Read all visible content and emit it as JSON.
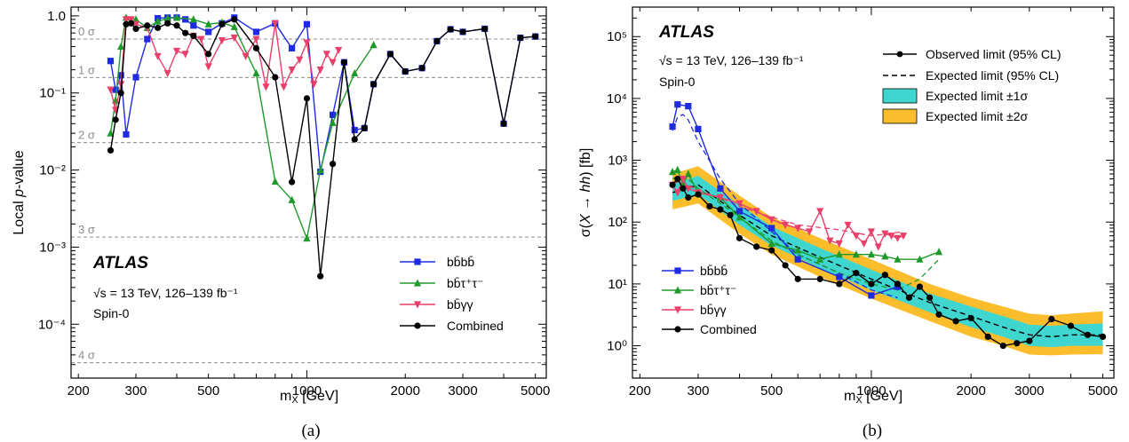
{
  "colors": {
    "bbbb": "#1f2be0",
    "bbtautau": "#1f9a2a",
    "bbyy": "#e8406a",
    "combined": "#000000",
    "band1": "#3ed6cf",
    "band2": "#fbbd2c",
    "sigma_line": "#8c8c8c"
  },
  "panel_a": {
    "label": "(a)",
    "atlas": "ATLAS",
    "energy": "√s = 13 TeV, 126–139 fb⁻¹",
    "spin": "Spin-0",
    "xlabel": "m_X [GeV]",
    "ylabel": "Local p-value",
    "x_ticks": [
      "200",
      "300",
      "500",
      "1000",
      "2000",
      "3000",
      "5000"
    ],
    "y_ticks": [
      "10⁻⁴",
      "10⁻³",
      "10⁻²",
      "10⁻¹",
      "1.0"
    ],
    "sigma_labels": [
      "0 σ",
      "1 σ",
      "2 σ",
      "3 σ",
      "4 σ"
    ],
    "legend": [
      "bb̄bb̄",
      "bb̄τ⁺τ⁻",
      "bb̄γγ",
      "Combined"
    ]
  },
  "panel_b": {
    "label": "(b)",
    "atlas": "ATLAS",
    "energy": "√s = 13 TeV, 126–139 fb⁻¹",
    "spin": "Spin-0",
    "xlabel": "m_X [GeV]",
    "ylabel": "σ(X → hh) [fb]",
    "x_ticks": [
      "200",
      "300",
      "500",
      "1000",
      "2000",
      "3000",
      "5000"
    ],
    "y_ticks": [
      "10⁰",
      "10¹",
      "10²",
      "10³",
      "10⁴",
      "10⁵"
    ],
    "legend_top": [
      "Observed limit (95% CL)",
      "Expected limit (95% CL)",
      "Expected limit ±1σ",
      "Expected limit ±2σ"
    ],
    "legend_channels": [
      "bb̄bb̄",
      "bb̄τ⁺τ⁻",
      "bb̄γγ",
      "Combined"
    ]
  },
  "chart_data": [
    {
      "type": "line",
      "panel": "a",
      "xlabel": "m_X [GeV]",
      "ylabel": "Local p-value",
      "x_scale": "log",
      "y_scale": "log",
      "xlim": [
        190,
        5400
      ],
      "ylim": [
        2e-05,
        1.3
      ],
      "sigma_lines": [
        0.5,
        0.1587,
        0.02275,
        0.00135,
        3.17e-05
      ],
      "legend_placement": "bottom-right",
      "series": [
        {
          "name": "bb̄bb̄",
          "marker": "square",
          "color": "#1f2be0",
          "x": [
            251,
            260,
            270,
            280,
            300,
            325,
            350,
            375,
            400,
            425,
            450,
            500,
            550,
            600,
            700,
            800,
            900,
            1000,
            1100,
            1200,
            1300,
            1400,
            1500,
            1600,
            1800,
            2000,
            2250,
            2500,
            2750,
            3000,
            3500,
            4000,
            4500,
            5000
          ],
          "y": [
            0.26,
            0.11,
            0.17,
            0.029,
            0.16,
            0.5,
            0.93,
            0.95,
            0.95,
            0.9,
            0.75,
            0.62,
            0.8,
            0.95,
            0.62,
            0.8,
            0.38,
            0.78,
            0.0095,
            0.052,
            0.25,
            0.033,
            0.035,
            0.13,
            0.32,
            0.19,
            0.21,
            0.47,
            0.67,
            0.62,
            0.68,
            0.04,
            0.52,
            0.54
          ]
        },
        {
          "name": "bb̄τ⁺τ⁻",
          "marker": "triangle-up",
          "color": "#1f9a2a",
          "x": [
            251,
            260,
            270,
            280,
            300,
            325,
            350,
            375,
            400,
            450,
            500,
            550,
            600,
            700,
            800,
            900,
            1000,
            1100,
            1200,
            1400,
            1600
          ],
          "y": [
            0.03,
            0.08,
            0.4,
            0.95,
            0.9,
            0.7,
            0.85,
            0.93,
            0.95,
            0.9,
            0.78,
            0.82,
            0.72,
            0.18,
            0.0071,
            0.0041,
            0.0013,
            0.01,
            0.041,
            0.18,
            0.42
          ]
        },
        {
          "name": "bb̄γγ",
          "marker": "triangle-down",
          "color": "#e8406a",
          "x": [
            251,
            260,
            270,
            280,
            290,
            300,
            325,
            350,
            375,
            400,
            425,
            450,
            475,
            500,
            550,
            600,
            650,
            700,
            750,
            800,
            850,
            900,
            950,
            1000,
            1050,
            1100,
            1150,
            1200,
            1250
          ],
          "y": [
            0.11,
            0.06,
            0.13,
            0.9,
            0.9,
            0.78,
            0.7,
            0.3,
            0.18,
            0.35,
            0.32,
            0.55,
            0.5,
            0.22,
            0.48,
            0.52,
            0.3,
            0.5,
            0.12,
            0.8,
            0.12,
            0.2,
            0.27,
            0.45,
            0.13,
            0.2,
            0.32,
            0.25,
            0.36
          ]
        },
        {
          "name": "Combined",
          "marker": "circle",
          "color": "#000000",
          "x": [
            251,
            260,
            270,
            280,
            290,
            300,
            325,
            350,
            375,
            400,
            425,
            450,
            500,
            550,
            600,
            700,
            800,
            900,
            1000,
            1100,
            1200,
            1300,
            1400,
            1500,
            1600,
            1800,
            2000,
            2250,
            2500,
            2750,
            3000,
            3500,
            4000,
            4500,
            5000
          ],
          "y": [
            0.018,
            0.045,
            0.1,
            0.78,
            0.8,
            0.68,
            0.75,
            0.7,
            0.8,
            0.75,
            0.6,
            0.55,
            0.32,
            0.78,
            0.9,
            0.38,
            0.16,
            0.007,
            0.085,
            0.00042,
            0.012,
            0.25,
            0.025,
            0.035,
            0.13,
            0.32,
            0.19,
            0.21,
            0.47,
            0.67,
            0.62,
            0.68,
            0.04,
            0.52,
            0.54
          ]
        }
      ]
    },
    {
      "type": "line",
      "panel": "b",
      "xlabel": "m_X [GeV]",
      "ylabel": "σ(X → hh) [fb]",
      "x_scale": "log",
      "y_scale": "log",
      "xlim": [
        190,
        5400
      ],
      "ylim": [
        0.3,
        300000
      ],
      "legend_placement": "top-right",
      "expected_band": {
        "x": [
          251,
          300,
          400,
          500,
          700,
          1000,
          1500,
          2000,
          2500,
          3000,
          3500,
          4000,
          5000
        ],
        "exp": [
          300,
          400,
          130,
          60,
          27,
          12,
          5,
          3,
          2,
          1.5,
          1.4,
          1.5,
          1.5
        ],
        "lo1": [
          220,
          280,
          90,
          42,
          18,
          8,
          3.5,
          2,
          1.4,
          1.0,
          0.95,
          1.0,
          1.0
        ],
        "hi1": [
          420,
          560,
          190,
          85,
          38,
          17,
          7,
          4.3,
          3,
          2.2,
          2.1,
          2.2,
          2.3
        ],
        "lo2": [
          160,
          200,
          65,
          30,
          13,
          5.8,
          2.5,
          1.4,
          1.0,
          0.72,
          0.7,
          0.72,
          0.73
        ],
        "hi2": [
          600,
          800,
          270,
          120,
          55,
          25,
          10,
          6,
          4.3,
          3.3,
          3.1,
          3.3,
          3.6
        ]
      },
      "observed": [
        {
          "name": "bb̄bb̄",
          "marker": "square",
          "color": "#1f2be0",
          "x": [
            251,
            260,
            280,
            300,
            350,
            400,
            500,
            600,
            800,
            1000,
            1200
          ],
          "y": [
            3500,
            8000,
            7500,
            3200,
            350,
            150,
            80,
            25,
            13,
            6.5,
            9
          ]
        },
        {
          "name": "bb̄τ⁺τ⁻",
          "marker": "triangle-up",
          "color": "#1f9a2a",
          "x": [
            251,
            260,
            270,
            280,
            300,
            350,
            400,
            500,
            600,
            700,
            800,
            900,
            1000,
            1100,
            1200,
            1400,
            1600
          ],
          "y": [
            650,
            700,
            400,
            600,
            300,
            250,
            120,
            45,
            35,
            25,
            30,
            30,
            30,
            28,
            25,
            25,
            33
          ]
        },
        {
          "name": "bb̄γγ",
          "marker": "triangle-down",
          "color": "#e8406a",
          "x": [
            251,
            260,
            270,
            280,
            300,
            350,
            400,
            450,
            500,
            550,
            600,
            650,
            700,
            750,
            800,
            850,
            900,
            950,
            1000,
            1050,
            1100,
            1150,
            1200,
            1250
          ],
          "y": [
            400,
            300,
            500,
            350,
            300,
            250,
            200,
            150,
            110,
            90,
            80,
            70,
            150,
            50,
            45,
            90,
            60,
            45,
            70,
            40,
            65,
            60,
            55,
            60
          ]
        },
        {
          "name": "Combined",
          "marker": "circle",
          "color": "#000000",
          "x": [
            251,
            260,
            270,
            280,
            300,
            325,
            350,
            375,
            400,
            450,
            500,
            550,
            600,
            700,
            800,
            900,
            1000,
            1100,
            1200,
            1300,
            1400,
            1500,
            1600,
            1800,
            2000,
            2250,
            2500,
            2750,
            3000,
            3500,
            4000,
            4500,
            5000
          ],
          "y": [
            400,
            500,
            350,
            250,
            280,
            180,
            160,
            130,
            55,
            40,
            35,
            20,
            12,
            12,
            10,
            15,
            10,
            14,
            10,
            6,
            9,
            6,
            3.2,
            2.5,
            2.8,
            1.4,
            1.0,
            1.1,
            1.2,
            2.7,
            2.1,
            1.5,
            1.4
          ]
        }
      ],
      "expected_channels": [
        {
          "name": "bb̄bb̄",
          "color": "#1f2be0",
          "x": [
            251,
            260,
            270,
            280,
            300,
            350,
            400,
            500,
            600,
            800,
            1000,
            1200
          ],
          "y": [
            3000,
            5000,
            5500,
            4500,
            2000,
            500,
            200,
            70,
            30,
            15,
            8,
            6
          ]
        },
        {
          "name": "bb̄τ⁺τ⁻",
          "color": "#1f9a2a",
          "x": [
            251,
            260,
            280,
            300,
            350,
            400,
            500,
            600,
            800,
            1000,
            1200,
            1400,
            1600
          ],
          "y": [
            500,
            550,
            500,
            350,
            200,
            120,
            50,
            30,
            15,
            10,
            8,
            12,
            25
          ]
        },
        {
          "name": "bb̄γγ",
          "color": "#e8406a",
          "x": [
            251,
            280,
            300,
            350,
            400,
            500,
            600,
            800,
            1000,
            1250
          ],
          "y": [
            450,
            400,
            320,
            250,
            180,
            120,
            90,
            75,
            60,
            70
          ]
        }
      ]
    }
  ]
}
